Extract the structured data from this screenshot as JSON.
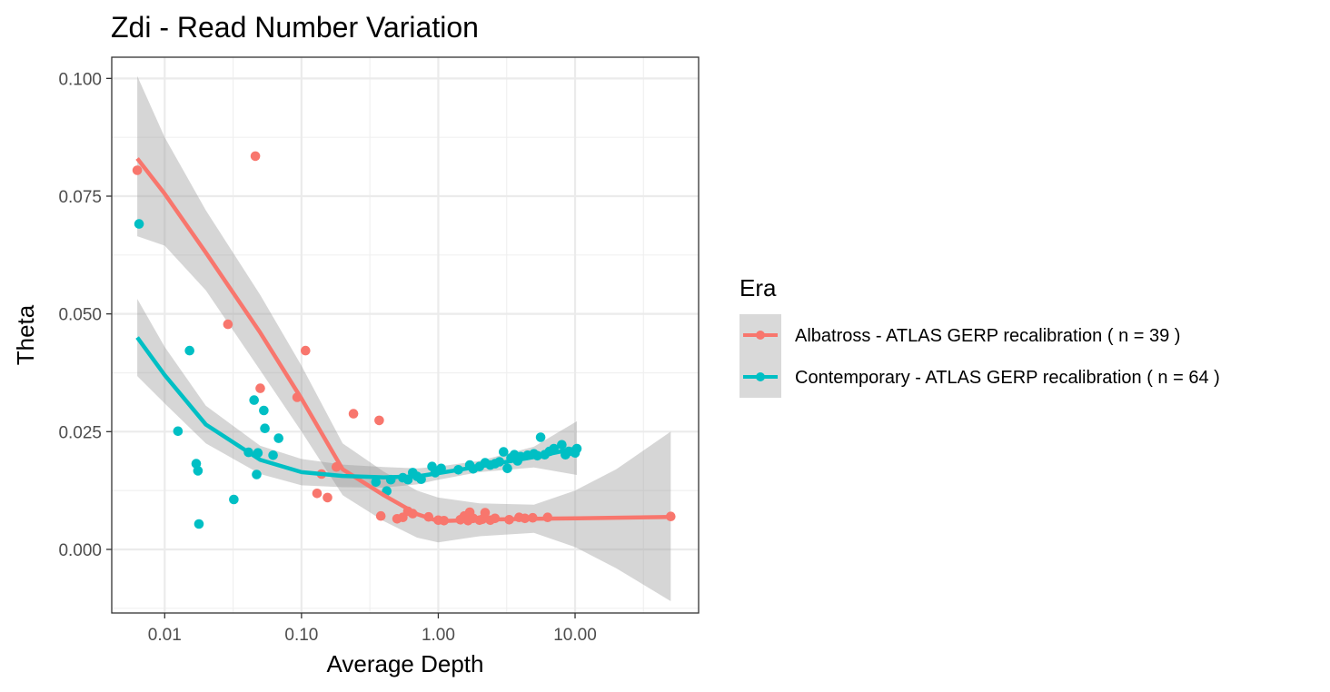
{
  "chart_data": {
    "type": "scatter",
    "title": "Zdi - Read Number Variation",
    "xlabel": "Average Depth",
    "ylabel": "Theta",
    "x_scale": "log10",
    "xlim": [
      0.0041,
      80
    ],
    "ylim": [
      -0.0135,
      0.1045
    ],
    "x_ticks": [
      0.01,
      0.1,
      1,
      10
    ],
    "x_tick_labels": [
      "0.01",
      "0.10",
      "1.00",
      "10.00"
    ],
    "y_ticks": [
      0,
      0.025,
      0.05,
      0.075,
      0.1
    ],
    "y_tick_labels": [
      "0.000",
      "0.025",
      "0.050",
      "0.075",
      "0.100"
    ],
    "grid": true,
    "smoothing": "loess with confidence band",
    "legend": {
      "title": "Era",
      "position": "right"
    },
    "series": [
      {
        "name": "Albatross - ATLAS GERP recalibration ( n = 39 )",
        "color": "#F8766D",
        "points": [
          [
            0.0063,
            0.0805
          ],
          [
            0.029,
            0.0478
          ],
          [
            0.046,
            0.0835
          ],
          [
            0.05,
            0.0342
          ],
          [
            0.093,
            0.0323
          ],
          [
            0.107,
            0.0422
          ],
          [
            0.13,
            0.0119
          ],
          [
            0.14,
            0.016
          ],
          [
            0.155,
            0.011
          ],
          [
            0.18,
            0.0175
          ],
          [
            0.24,
            0.0288
          ],
          [
            0.37,
            0.0274
          ],
          [
            0.38,
            0.0071
          ],
          [
            0.5,
            0.0065
          ],
          [
            0.55,
            0.0068
          ],
          [
            0.6,
            0.0081
          ],
          [
            0.65,
            0.0076
          ],
          [
            0.85,
            0.0069
          ],
          [
            1.0,
            0.0062
          ],
          [
            1.1,
            0.0061
          ],
          [
            1.45,
            0.0063
          ],
          [
            1.55,
            0.0071
          ],
          [
            1.65,
            0.0061
          ],
          [
            1.7,
            0.0079
          ],
          [
            1.8,
            0.0066
          ],
          [
            2.0,
            0.0062
          ],
          [
            2.1,
            0.0064
          ],
          [
            2.2,
            0.0078
          ],
          [
            2.4,
            0.0062
          ],
          [
            2.6,
            0.0066
          ],
          [
            3.3,
            0.0063
          ],
          [
            3.9,
            0.0068
          ],
          [
            4.3,
            0.0066
          ],
          [
            4.9,
            0.0067
          ],
          [
            6.3,
            0.0068
          ],
          [
            50,
            0.007
          ]
        ],
        "smooth": [
          [
            0.0063,
            0.083
          ],
          [
            0.01,
            0.0755
          ],
          [
            0.02,
            0.063
          ],
          [
            0.05,
            0.046
          ],
          [
            0.1,
            0.032
          ],
          [
            0.2,
            0.017
          ],
          [
            0.4,
            0.0115
          ],
          [
            0.7,
            0.0075
          ],
          [
            1.0,
            0.006
          ],
          [
            2.0,
            0.0063
          ],
          [
            5.0,
            0.0065
          ],
          [
            10.0,
            0.0066
          ],
          [
            50,
            0.0069
          ]
        ],
        "band_upper": [
          [
            0.0063,
            0.1005
          ],
          [
            0.01,
            0.0875
          ],
          [
            0.02,
            0.072
          ],
          [
            0.05,
            0.054
          ],
          [
            0.1,
            0.039
          ],
          [
            0.2,
            0.0225
          ],
          [
            0.4,
            0.0165
          ],
          [
            0.7,
            0.0125
          ],
          [
            1.0,
            0.011
          ],
          [
            2.0,
            0.0098
          ],
          [
            5.0,
            0.0095
          ],
          [
            10.0,
            0.0125
          ],
          [
            20.0,
            0.017
          ],
          [
            50,
            0.025
          ]
        ],
        "band_lower": [
          [
            0.0063,
            0.0665
          ],
          [
            0.01,
            0.0645
          ],
          [
            0.02,
            0.055
          ],
          [
            0.05,
            0.038
          ],
          [
            0.1,
            0.025
          ],
          [
            0.2,
            0.0115
          ],
          [
            0.4,
            0.006
          ],
          [
            0.7,
            0.0025
          ],
          [
            1.0,
            0.0015
          ],
          [
            2.0,
            0.0028
          ],
          [
            5.0,
            0.0035
          ],
          [
            10.0,
            0.0005
          ],
          [
            20.0,
            -0.004
          ],
          [
            50,
            -0.011
          ]
        ]
      },
      {
        "name": "Contemporary - ATLAS GERP recalibration ( n = 64 )",
        "color": "#00BFC4",
        "points": [
          [
            0.0065,
            0.0691
          ],
          [
            0.0125,
            0.0251
          ],
          [
            0.0152,
            0.0422
          ],
          [
            0.017,
            0.0182
          ],
          [
            0.0175,
            0.0167
          ],
          [
            0.0178,
            0.0054
          ],
          [
            0.032,
            0.0106
          ],
          [
            0.041,
            0.0206
          ],
          [
            0.045,
            0.0317
          ],
          [
            0.047,
            0.0159
          ],
          [
            0.048,
            0.0205
          ],
          [
            0.053,
            0.0295
          ],
          [
            0.054,
            0.0257
          ],
          [
            0.062,
            0.02
          ],
          [
            0.068,
            0.0236
          ],
          [
            0.35,
            0.0143
          ],
          [
            0.42,
            0.0124
          ],
          [
            0.45,
            0.0148
          ],
          [
            0.55,
            0.0152
          ],
          [
            0.6,
            0.0148
          ],
          [
            0.65,
            0.0163
          ],
          [
            0.7,
            0.0155
          ],
          [
            0.75,
            0.0149
          ],
          [
            0.9,
            0.0176
          ],
          [
            0.95,
            0.0163
          ],
          [
            1.05,
            0.0172
          ],
          [
            1.4,
            0.0169
          ],
          [
            1.7,
            0.0179
          ],
          [
            1.8,
            0.0171
          ],
          [
            2.0,
            0.0176
          ],
          [
            2.2,
            0.0184
          ],
          [
            2.4,
            0.0179
          ],
          [
            2.6,
            0.0182
          ],
          [
            2.8,
            0.0186
          ],
          [
            3.0,
            0.0207
          ],
          [
            3.2,
            0.0172
          ],
          [
            3.4,
            0.0194
          ],
          [
            3.6,
            0.0201
          ],
          [
            3.8,
            0.0188
          ],
          [
            4.0,
            0.0197
          ],
          [
            4.5,
            0.02
          ],
          [
            5.0,
            0.0203
          ],
          [
            5.3,
            0.0199
          ],
          [
            5.6,
            0.0238
          ],
          [
            6.0,
            0.0201
          ],
          [
            6.5,
            0.0208
          ],
          [
            7.0,
            0.0214
          ],
          [
            8.0,
            0.0222
          ],
          [
            8.5,
            0.0201
          ],
          [
            9.0,
            0.0208
          ],
          [
            10.0,
            0.0205
          ],
          [
            10.3,
            0.0214
          ]
        ],
        "smooth": [
          [
            0.0063,
            0.045
          ],
          [
            0.01,
            0.037
          ],
          [
            0.02,
            0.0265
          ],
          [
            0.05,
            0.019
          ],
          [
            0.1,
            0.0164
          ],
          [
            0.2,
            0.0156
          ],
          [
            0.4,
            0.0153
          ],
          [
            0.7,
            0.0155
          ],
          [
            1.0,
            0.0162
          ],
          [
            2.0,
            0.0176
          ],
          [
            5.0,
            0.0196
          ],
          [
            10.3,
            0.0215
          ]
        ],
        "band_upper": [
          [
            0.0063,
            0.0532
          ],
          [
            0.01,
            0.043
          ],
          [
            0.02,
            0.0305
          ],
          [
            0.05,
            0.022
          ],
          [
            0.1,
            0.0192
          ],
          [
            0.2,
            0.018
          ],
          [
            0.4,
            0.0175
          ],
          [
            0.7,
            0.0172
          ],
          [
            1.0,
            0.0176
          ],
          [
            2.0,
            0.0188
          ],
          [
            5.0,
            0.0218
          ],
          [
            10.3,
            0.0272
          ]
        ],
        "band_lower": [
          [
            0.0063,
            0.0368
          ],
          [
            0.01,
            0.031
          ],
          [
            0.02,
            0.0225
          ],
          [
            0.05,
            0.016
          ],
          [
            0.1,
            0.0136
          ],
          [
            0.2,
            0.0132
          ],
          [
            0.4,
            0.0131
          ],
          [
            0.7,
            0.0138
          ],
          [
            1.0,
            0.0148
          ],
          [
            2.0,
            0.0164
          ],
          [
            5.0,
            0.0174
          ],
          [
            10.3,
            0.0158
          ]
        ]
      }
    ]
  }
}
